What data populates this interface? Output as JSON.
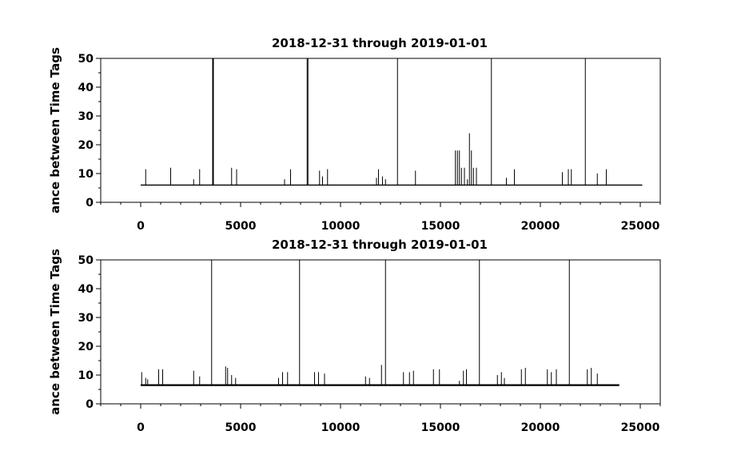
{
  "chart_data": [
    {
      "type": "line",
      "title": "2018-12-31 through 2019-01-01",
      "xlabel": "",
      "ylabel": "ance between Time Tags",
      "xlim": [
        -2000,
        26000
      ],
      "ylim": [
        0,
        50
      ],
      "xticks": [
        0,
        5000,
        10000,
        15000,
        20000,
        25000
      ],
      "yticks": [
        0,
        10,
        20,
        30,
        40,
        50
      ],
      "baseline": 6,
      "x_end": 25100,
      "spikes": [
        {
          "x": 250,
          "y": 11.5
        },
        {
          "x": 1500,
          "y": 12
        },
        {
          "x": 2650,
          "y": 8
        },
        {
          "x": 2950,
          "y": 11.5
        },
        {
          "x": 3600,
          "y": 50
        },
        {
          "x": 3640,
          "y": 50
        },
        {
          "x": 4550,
          "y": 12
        },
        {
          "x": 4800,
          "y": 11.5
        },
        {
          "x": 7200,
          "y": 8
        },
        {
          "x": 7500,
          "y": 11.5
        },
        {
          "x": 8330,
          "y": 50
        },
        {
          "x": 8370,
          "y": 50
        },
        {
          "x": 8950,
          "y": 11
        },
        {
          "x": 9100,
          "y": 9
        },
        {
          "x": 9350,
          "y": 11.5
        },
        {
          "x": 11800,
          "y": 8.5
        },
        {
          "x": 11900,
          "y": 11.5
        },
        {
          "x": 12100,
          "y": 9
        },
        {
          "x": 12250,
          "y": 8
        },
        {
          "x": 12850,
          "y": 50
        },
        {
          "x": 13750,
          "y": 11
        },
        {
          "x": 15750,
          "y": 18
        },
        {
          "x": 15850,
          "y": 18
        },
        {
          "x": 15950,
          "y": 18
        },
        {
          "x": 16050,
          "y": 12
        },
        {
          "x": 16200,
          "y": 12
        },
        {
          "x": 16350,
          "y": 8
        },
        {
          "x": 16450,
          "y": 24
        },
        {
          "x": 16550,
          "y": 18
        },
        {
          "x": 16650,
          "y": 12
        },
        {
          "x": 16800,
          "y": 12
        },
        {
          "x": 17550,
          "y": 50
        },
        {
          "x": 18300,
          "y": 8.5
        },
        {
          "x": 18700,
          "y": 11.5
        },
        {
          "x": 21100,
          "y": 10.5
        },
        {
          "x": 21400,
          "y": 11.5
        },
        {
          "x": 21550,
          "y": 11.5
        },
        {
          "x": 22250,
          "y": 50
        },
        {
          "x": 22850,
          "y": 10
        },
        {
          "x": 23300,
          "y": 11.5
        }
      ]
    },
    {
      "type": "line",
      "title": "2018-12-31 through 2019-01-01",
      "xlabel": "",
      "ylabel": "ance between Time Tags",
      "xlim": [
        -2000,
        26000
      ],
      "ylim": [
        0,
        50
      ],
      "xticks": [
        0,
        5000,
        10000,
        15000,
        20000,
        25000
      ],
      "yticks": [
        0,
        10,
        20,
        30,
        40,
        50
      ],
      "baseline": 6.5,
      "x_end": 23950,
      "spikes": [
        {
          "x": 50,
          "y": 11
        },
        {
          "x": 250,
          "y": 9
        },
        {
          "x": 350,
          "y": 8.5
        },
        {
          "x": 900,
          "y": 12
        },
        {
          "x": 1100,
          "y": 12
        },
        {
          "x": 2650,
          "y": 11.5
        },
        {
          "x": 2950,
          "y": 9.5
        },
        {
          "x": 3550,
          "y": 50
        },
        {
          "x": 4250,
          "y": 13
        },
        {
          "x": 4350,
          "y": 12.5
        },
        {
          "x": 4550,
          "y": 10
        },
        {
          "x": 4750,
          "y": 9
        },
        {
          "x": 6900,
          "y": 9
        },
        {
          "x": 7100,
          "y": 11
        },
        {
          "x": 7350,
          "y": 11
        },
        {
          "x": 7950,
          "y": 50
        },
        {
          "x": 8700,
          "y": 11
        },
        {
          "x": 8900,
          "y": 11
        },
        {
          "x": 9200,
          "y": 10.5
        },
        {
          "x": 11250,
          "y": 9.5
        },
        {
          "x": 11450,
          "y": 9
        },
        {
          "x": 12050,
          "y": 13.5
        },
        {
          "x": 12250,
          "y": 50
        },
        {
          "x": 13150,
          "y": 11
        },
        {
          "x": 13450,
          "y": 11
        },
        {
          "x": 13650,
          "y": 11.5
        },
        {
          "x": 14650,
          "y": 12
        },
        {
          "x": 14950,
          "y": 12
        },
        {
          "x": 15950,
          "y": 8
        },
        {
          "x": 16150,
          "y": 11.5
        },
        {
          "x": 16300,
          "y": 12
        },
        {
          "x": 16950,
          "y": 50
        },
        {
          "x": 17850,
          "y": 10
        },
        {
          "x": 18050,
          "y": 11
        },
        {
          "x": 18200,
          "y": 9
        },
        {
          "x": 19050,
          "y": 12
        },
        {
          "x": 19250,
          "y": 12.5
        },
        {
          "x": 20350,
          "y": 12
        },
        {
          "x": 20550,
          "y": 11
        },
        {
          "x": 20800,
          "y": 12
        },
        {
          "x": 21450,
          "y": 50
        },
        {
          "x": 22350,
          "y": 12
        },
        {
          "x": 22550,
          "y": 12.5
        },
        {
          "x": 22850,
          "y": 10.5
        }
      ]
    }
  ]
}
